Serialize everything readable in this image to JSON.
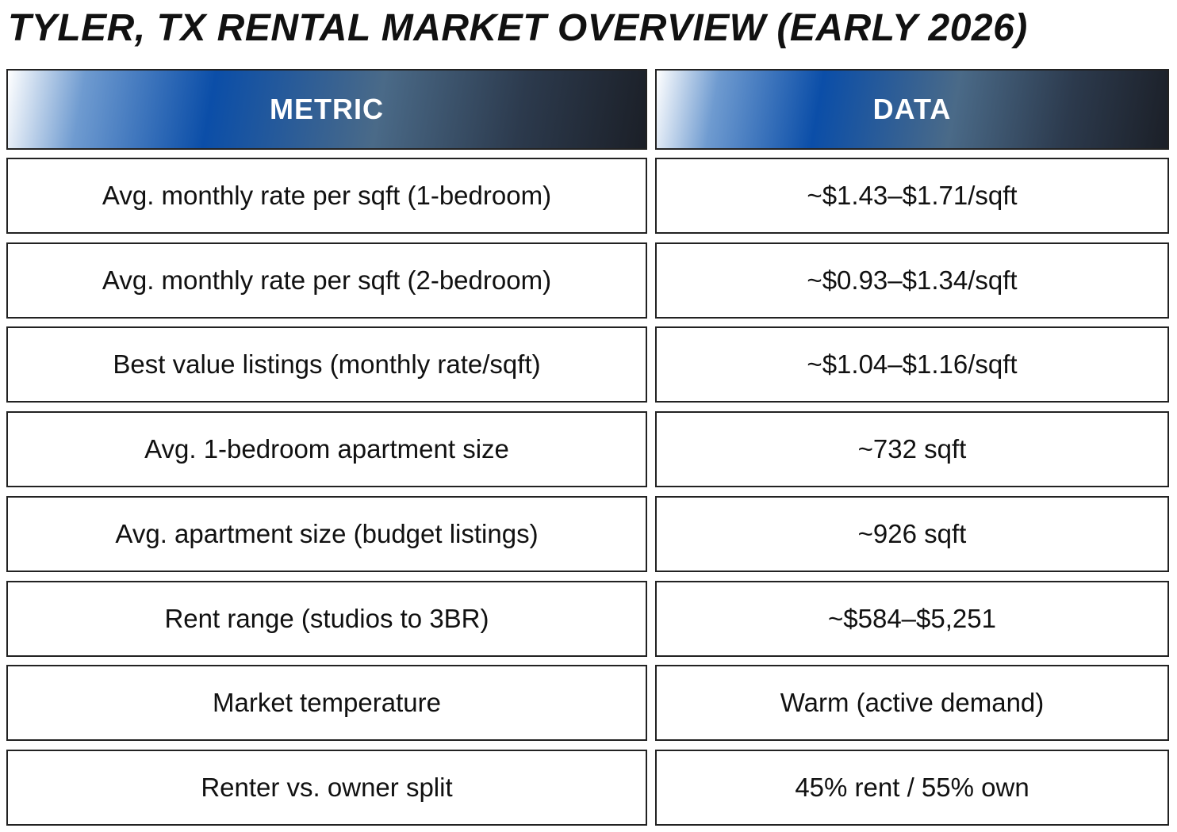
{
  "title": "TYLER, TX RENTAL MARKET OVERVIEW (EARLY 2026)",
  "table": {
    "header": [
      "METRIC",
      "DATA"
    ],
    "rows": [
      [
        "Avg. monthly rate per sqft (1-bedroom)",
        "~$1.43–$1.71/sqft"
      ],
      [
        "Avg. monthly rate per sqft (2-bedroom)",
        "~$0.93–$1.34/sqft"
      ],
      [
        "Best value listings (monthly rate/sqft)",
        "~$1.04–$1.16/sqft"
      ],
      [
        "Avg. 1-bedroom apartment size",
        "~732 sqft"
      ],
      [
        "Avg. apartment size (budget listings)",
        "~926 sqft"
      ],
      [
        "Rent range (studios to 3BR)",
        "~$584–$5,251"
      ],
      [
        "Market temperature",
        "Warm (active demand)"
      ],
      [
        "Renter vs. owner split",
        "45% rent / 55% own"
      ]
    ]
  }
}
